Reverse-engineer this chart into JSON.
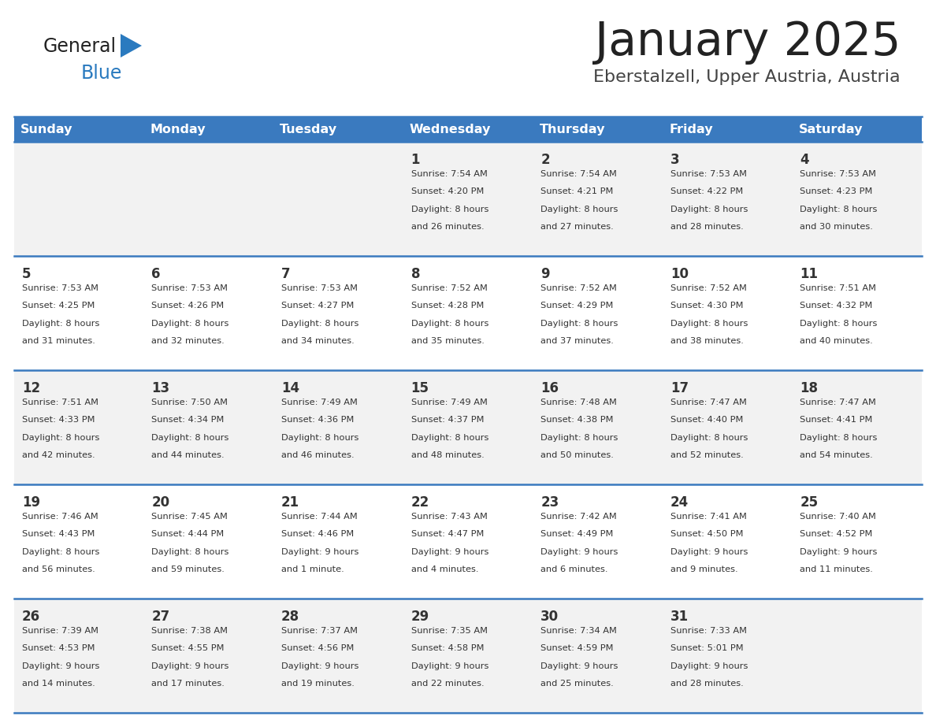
{
  "title": "January 2025",
  "subtitle": "Eberstalzell, Upper Austria, Austria",
  "days_of_week": [
    "Sunday",
    "Monday",
    "Tuesday",
    "Wednesday",
    "Thursday",
    "Friday",
    "Saturday"
  ],
  "header_bg": "#3a7abf",
  "header_text_color": "#ffffff",
  "cell_bg_odd": "#f2f2f2",
  "cell_bg_even": "#ffffff",
  "cell_text_color": "#333333",
  "border_color": "#3a7abf",
  "title_color": "#222222",
  "subtitle_color": "#444444",
  "calendar": [
    [
      null,
      null,
      null,
      {
        "day": 1,
        "sunrise": "7:54 AM",
        "sunset": "4:20 PM",
        "daylight": "8 hours",
        "daylight2": "and 26 minutes."
      },
      {
        "day": 2,
        "sunrise": "7:54 AM",
        "sunset": "4:21 PM",
        "daylight": "8 hours",
        "daylight2": "and 27 minutes."
      },
      {
        "day": 3,
        "sunrise": "7:53 AM",
        "sunset": "4:22 PM",
        "daylight": "8 hours",
        "daylight2": "and 28 minutes."
      },
      {
        "day": 4,
        "sunrise": "7:53 AM",
        "sunset": "4:23 PM",
        "daylight": "8 hours",
        "daylight2": "and 30 minutes."
      }
    ],
    [
      {
        "day": 5,
        "sunrise": "7:53 AM",
        "sunset": "4:25 PM",
        "daylight": "8 hours",
        "daylight2": "and 31 minutes."
      },
      {
        "day": 6,
        "sunrise": "7:53 AM",
        "sunset": "4:26 PM",
        "daylight": "8 hours",
        "daylight2": "and 32 minutes."
      },
      {
        "day": 7,
        "sunrise": "7:53 AM",
        "sunset": "4:27 PM",
        "daylight": "8 hours",
        "daylight2": "and 34 minutes."
      },
      {
        "day": 8,
        "sunrise": "7:52 AM",
        "sunset": "4:28 PM",
        "daylight": "8 hours",
        "daylight2": "and 35 minutes."
      },
      {
        "day": 9,
        "sunrise": "7:52 AM",
        "sunset": "4:29 PM",
        "daylight": "8 hours",
        "daylight2": "and 37 minutes."
      },
      {
        "day": 10,
        "sunrise": "7:52 AM",
        "sunset": "4:30 PM",
        "daylight": "8 hours",
        "daylight2": "and 38 minutes."
      },
      {
        "day": 11,
        "sunrise": "7:51 AM",
        "sunset": "4:32 PM",
        "daylight": "8 hours",
        "daylight2": "and 40 minutes."
      }
    ],
    [
      {
        "day": 12,
        "sunrise": "7:51 AM",
        "sunset": "4:33 PM",
        "daylight": "8 hours",
        "daylight2": "and 42 minutes."
      },
      {
        "day": 13,
        "sunrise": "7:50 AM",
        "sunset": "4:34 PM",
        "daylight": "8 hours",
        "daylight2": "and 44 minutes."
      },
      {
        "day": 14,
        "sunrise": "7:49 AM",
        "sunset": "4:36 PM",
        "daylight": "8 hours",
        "daylight2": "and 46 minutes."
      },
      {
        "day": 15,
        "sunrise": "7:49 AM",
        "sunset": "4:37 PM",
        "daylight": "8 hours",
        "daylight2": "and 48 minutes."
      },
      {
        "day": 16,
        "sunrise": "7:48 AM",
        "sunset": "4:38 PM",
        "daylight": "8 hours",
        "daylight2": "and 50 minutes."
      },
      {
        "day": 17,
        "sunrise": "7:47 AM",
        "sunset": "4:40 PM",
        "daylight": "8 hours",
        "daylight2": "and 52 minutes."
      },
      {
        "day": 18,
        "sunrise": "7:47 AM",
        "sunset": "4:41 PM",
        "daylight": "8 hours",
        "daylight2": "and 54 minutes."
      }
    ],
    [
      {
        "day": 19,
        "sunrise": "7:46 AM",
        "sunset": "4:43 PM",
        "daylight": "8 hours",
        "daylight2": "and 56 minutes."
      },
      {
        "day": 20,
        "sunrise": "7:45 AM",
        "sunset": "4:44 PM",
        "daylight": "8 hours",
        "daylight2": "and 59 minutes."
      },
      {
        "day": 21,
        "sunrise": "7:44 AM",
        "sunset": "4:46 PM",
        "daylight": "9 hours",
        "daylight2": "and 1 minute."
      },
      {
        "day": 22,
        "sunrise": "7:43 AM",
        "sunset": "4:47 PM",
        "daylight": "9 hours",
        "daylight2": "and 4 minutes."
      },
      {
        "day": 23,
        "sunrise": "7:42 AM",
        "sunset": "4:49 PM",
        "daylight": "9 hours",
        "daylight2": "and 6 minutes."
      },
      {
        "day": 24,
        "sunrise": "7:41 AM",
        "sunset": "4:50 PM",
        "daylight": "9 hours",
        "daylight2": "and 9 minutes."
      },
      {
        "day": 25,
        "sunrise": "7:40 AM",
        "sunset": "4:52 PM",
        "daylight": "9 hours",
        "daylight2": "and 11 minutes."
      }
    ],
    [
      {
        "day": 26,
        "sunrise": "7:39 AM",
        "sunset": "4:53 PM",
        "daylight": "9 hours",
        "daylight2": "and 14 minutes."
      },
      {
        "day": 27,
        "sunrise": "7:38 AM",
        "sunset": "4:55 PM",
        "daylight": "9 hours",
        "daylight2": "and 17 minutes."
      },
      {
        "day": 28,
        "sunrise": "7:37 AM",
        "sunset": "4:56 PM",
        "daylight": "9 hours",
        "daylight2": "and 19 minutes."
      },
      {
        "day": 29,
        "sunrise": "7:35 AM",
        "sunset": "4:58 PM",
        "daylight": "9 hours",
        "daylight2": "and 22 minutes."
      },
      {
        "day": 30,
        "sunrise": "7:34 AM",
        "sunset": "4:59 PM",
        "daylight": "9 hours",
        "daylight2": "and 25 minutes."
      },
      {
        "day": 31,
        "sunrise": "7:33 AM",
        "sunset": "5:01 PM",
        "daylight": "9 hours",
        "daylight2": "and 28 minutes."
      },
      null
    ]
  ],
  "logo_text1": "General",
  "logo_text2": "Blue",
  "logo_color1": "#222222",
  "logo_color2": "#2a7abf",
  "logo_tri_color": "#2a7abf"
}
